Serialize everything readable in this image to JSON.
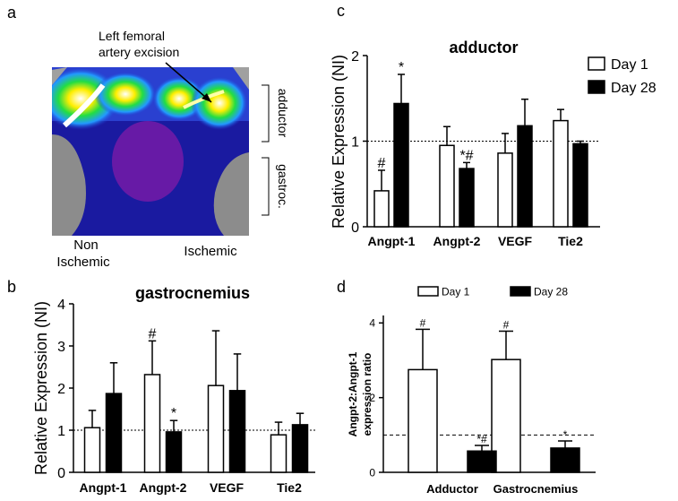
{
  "image_panel": {
    "panel": "a",
    "annotation": [
      "Left femoral",
      "artery excision"
    ],
    "side_labels": [
      "adductor",
      "gastroc."
    ],
    "bottom_labels": [
      "Non",
      "Ischemic",
      "Ischemic"
    ]
  },
  "chart_data": [
    {
      "type": "bar",
      "panel": "b",
      "title": "gastrocnemius",
      "ylabel": [
        "Relative Expression (NI)"
      ],
      "categories": [
        "Angpt-1",
        "Angpt-2",
        "VEGF",
        "Tie2"
      ],
      "series": [
        {
          "color": "#ffffff",
          "values": [
            1.06,
            2.32,
            2.06,
            0.89
          ],
          "errors": [
            0.41,
            0.8,
            1.3,
            0.3
          ],
          "annotations": [
            null,
            "#",
            null,
            null
          ]
        },
        {
          "color": "#000000",
          "values": [
            1.87,
            0.96,
            1.94,
            1.13
          ],
          "errors": [
            0.73,
            0.27,
            0.87,
            0.27
          ],
          "annotations": [
            null,
            "*",
            null,
            null
          ]
        }
      ],
      "ylim": [
        0,
        4
      ],
      "yticks": [
        0,
        1,
        2,
        3,
        4
      ],
      "reference_line": 1
    },
    {
      "type": "bar",
      "panel": "c",
      "title": "adductor",
      "ylabel": [
        "Relative Expression (NI)"
      ],
      "categories": [
        "Angpt-1",
        "Angpt-2",
        "VEGF",
        "Tie2"
      ],
      "series": [
        {
          "name": "Day 1",
          "color": "#ffffff",
          "values": [
            0.42,
            0.95,
            0.86,
            1.24
          ],
          "errors": [
            0.24,
            0.22,
            0.23,
            0.13
          ],
          "annotations": [
            "#",
            null,
            null,
            null
          ]
        },
        {
          "name": "Day 28",
          "color": "#000000",
          "values": [
            1.44,
            0.68,
            1.18,
            0.97
          ],
          "errors": [
            0.34,
            0.07,
            0.31,
            0.03
          ],
          "annotations": [
            "*",
            "*#",
            null,
            null
          ]
        }
      ],
      "ylim": [
        0,
        2
      ],
      "yticks": [
        0,
        1,
        2
      ],
      "reference_line": 1,
      "legend": "right"
    },
    {
      "type": "bar",
      "panel": "d",
      "ylabel": [
        "Angpt-2:Angpt-1",
        "expression ratio"
      ],
      "categories": [
        "Adductor",
        "Gastrocnemius"
      ],
      "series": [
        {
          "name": "Day 1",
          "color": "#ffffff",
          "values": [
            2.75,
            3.02
          ],
          "errors": [
            1.08,
            0.76
          ],
          "annotations": [
            "#",
            "#"
          ]
        },
        {
          "name": "Day 28",
          "color": "#000000",
          "values": [
            0.57,
            0.65
          ],
          "errors": [
            0.15,
            0.19
          ],
          "annotations": [
            "*#",
            "*"
          ]
        }
      ],
      "ylim": [
        0,
        4.2
      ],
      "yticks": [
        0,
        2,
        4
      ],
      "reference_line": 1,
      "legend": "top"
    }
  ]
}
